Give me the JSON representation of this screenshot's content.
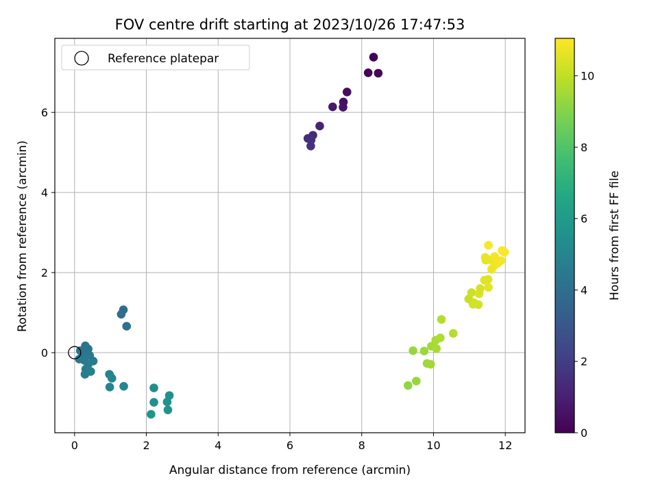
{
  "chart_data": {
    "type": "scatter",
    "title": "FOV centre drift starting at 2023/10/26 17:47:53",
    "xlabel": "Angular distance from reference (arcmin)",
    "ylabel": "Rotation from reference (arcmin)",
    "xlim": [
      -0.55,
      12.55
    ],
    "ylim": [
      -2.0,
      7.85
    ],
    "xticks": [
      0,
      2,
      4,
      6,
      8,
      10,
      12
    ],
    "yticks": [
      0,
      2,
      4,
      6
    ],
    "grid": true,
    "colorbar": {
      "label": "Hours from first FF file",
      "colormap": "viridis",
      "range": [
        0,
        11.05
      ],
      "ticks": [
        0,
        2,
        4,
        6,
        8,
        10
      ]
    },
    "legend": {
      "placement": "top-left",
      "entries": [
        {
          "label": "Reference platepar",
          "marker": "open-circle"
        }
      ]
    },
    "reference_point": {
      "x": 0,
      "y": 0
    },
    "points": [
      {
        "x": 8.33,
        "y": 7.38,
        "c": 0.0
      },
      {
        "x": 8.18,
        "y": 6.99,
        "c": 0.1
      },
      {
        "x": 8.46,
        "y": 6.98,
        "c": 0.2
      },
      {
        "x": 7.59,
        "y": 6.51,
        "c": 0.4
      },
      {
        "x": 7.49,
        "y": 6.26,
        "c": 0.5
      },
      {
        "x": 7.48,
        "y": 6.13,
        "c": 0.6
      },
      {
        "x": 7.19,
        "y": 6.14,
        "c": 0.8
      },
      {
        "x": 6.83,
        "y": 5.66,
        "c": 1.1
      },
      {
        "x": 6.64,
        "y": 5.43,
        "c": 1.3
      },
      {
        "x": 6.5,
        "y": 5.35,
        "c": 1.4
      },
      {
        "x": 6.59,
        "y": 5.31,
        "c": 1.5
      },
      {
        "x": 6.58,
        "y": 5.16,
        "c": 1.6
      },
      {
        "x": 1.36,
        "y": 1.07,
        "c": 3.9
      },
      {
        "x": 1.3,
        "y": 0.96,
        "c": 4.0
      },
      {
        "x": 1.45,
        "y": 0.66,
        "c": 4.1
      },
      {
        "x": 0.3,
        "y": 0.17,
        "c": 4.2
      },
      {
        "x": 0.38,
        "y": 0.09,
        "c": 4.2
      },
      {
        "x": 0.16,
        "y": 0.05,
        "c": 4.3
      },
      {
        "x": 0.23,
        "y": -0.05,
        "c": 4.3
      },
      {
        "x": 0.42,
        "y": -0.07,
        "c": 4.4
      },
      {
        "x": 0.13,
        "y": -0.16,
        "c": 4.4
      },
      {
        "x": 0.27,
        "y": -0.19,
        "c": 4.5
      },
      {
        "x": 0.52,
        "y": -0.21,
        "c": 4.5
      },
      {
        "x": 0.38,
        "y": -0.29,
        "c": 4.6
      },
      {
        "x": 0.31,
        "y": -0.41,
        "c": 4.6
      },
      {
        "x": 0.45,
        "y": -0.47,
        "c": 4.7
      },
      {
        "x": 0.29,
        "y": -0.54,
        "c": 4.7
      },
      {
        "x": 0.97,
        "y": -0.54,
        "c": 4.9
      },
      {
        "x": 1.04,
        "y": -0.64,
        "c": 5.0
      },
      {
        "x": 0.98,
        "y": -0.86,
        "c": 5.0
      },
      {
        "x": 1.37,
        "y": -0.84,
        "c": 5.1
      },
      {
        "x": 2.21,
        "y": -0.88,
        "c": 5.4
      },
      {
        "x": 2.64,
        "y": -1.07,
        "c": 5.5
      },
      {
        "x": 2.21,
        "y": -1.24,
        "c": 5.5
      },
      {
        "x": 2.58,
        "y": -1.23,
        "c": 5.6
      },
      {
        "x": 2.6,
        "y": -1.43,
        "c": 5.6
      },
      {
        "x": 2.13,
        "y": -1.54,
        "c": 5.7
      },
      {
        "x": 9.29,
        "y": -0.82,
        "c": 9.2
      },
      {
        "x": 9.52,
        "y": -0.71,
        "c": 9.3
      },
      {
        "x": 9.43,
        "y": 0.05,
        "c": 9.3
      },
      {
        "x": 9.74,
        "y": 0.04,
        "c": 9.4
      },
      {
        "x": 9.82,
        "y": -0.27,
        "c": 9.4
      },
      {
        "x": 9.92,
        "y": -0.29,
        "c": 9.5
      },
      {
        "x": 9.94,
        "y": 0.16,
        "c": 9.5
      },
      {
        "x": 10.08,
        "y": 0.1,
        "c": 9.6
      },
      {
        "x": 10.06,
        "y": 0.31,
        "c": 9.6
      },
      {
        "x": 10.19,
        "y": 0.37,
        "c": 9.7
      },
      {
        "x": 10.22,
        "y": 0.83,
        "c": 9.8
      },
      {
        "x": 10.55,
        "y": 0.48,
        "c": 9.8
      },
      {
        "x": 10.98,
        "y": 1.34,
        "c": 10.1
      },
      {
        "x": 11.06,
        "y": 1.5,
        "c": 10.2
      },
      {
        "x": 11.12,
        "y": 1.25,
        "c": 10.2
      },
      {
        "x": 11.1,
        "y": 1.21,
        "c": 10.3
      },
      {
        "x": 11.25,
        "y": 1.2,
        "c": 10.3
      },
      {
        "x": 11.3,
        "y": 1.6,
        "c": 10.4
      },
      {
        "x": 11.27,
        "y": 1.47,
        "c": 10.4
      },
      {
        "x": 11.42,
        "y": 1.81,
        "c": 10.5
      },
      {
        "x": 11.52,
        "y": 1.83,
        "c": 10.5
      },
      {
        "x": 11.53,
        "y": 1.63,
        "c": 10.6
      },
      {
        "x": 11.46,
        "y": 2.31,
        "c": 10.6
      },
      {
        "x": 11.44,
        "y": 2.38,
        "c": 10.7
      },
      {
        "x": 11.58,
        "y": 2.32,
        "c": 10.7
      },
      {
        "x": 11.62,
        "y": 2.08,
        "c": 10.8
      },
      {
        "x": 11.7,
        "y": 2.18,
        "c": 10.8
      },
      {
        "x": 11.8,
        "y": 2.24,
        "c": 10.9
      },
      {
        "x": 11.88,
        "y": 2.3,
        "c": 10.9
      },
      {
        "x": 11.7,
        "y": 2.4,
        "c": 10.9
      },
      {
        "x": 11.53,
        "y": 2.68,
        "c": 11.0
      },
      {
        "x": 11.91,
        "y": 2.55,
        "c": 11.0
      },
      {
        "x": 11.98,
        "y": 2.51,
        "c": 11.0
      }
    ]
  }
}
